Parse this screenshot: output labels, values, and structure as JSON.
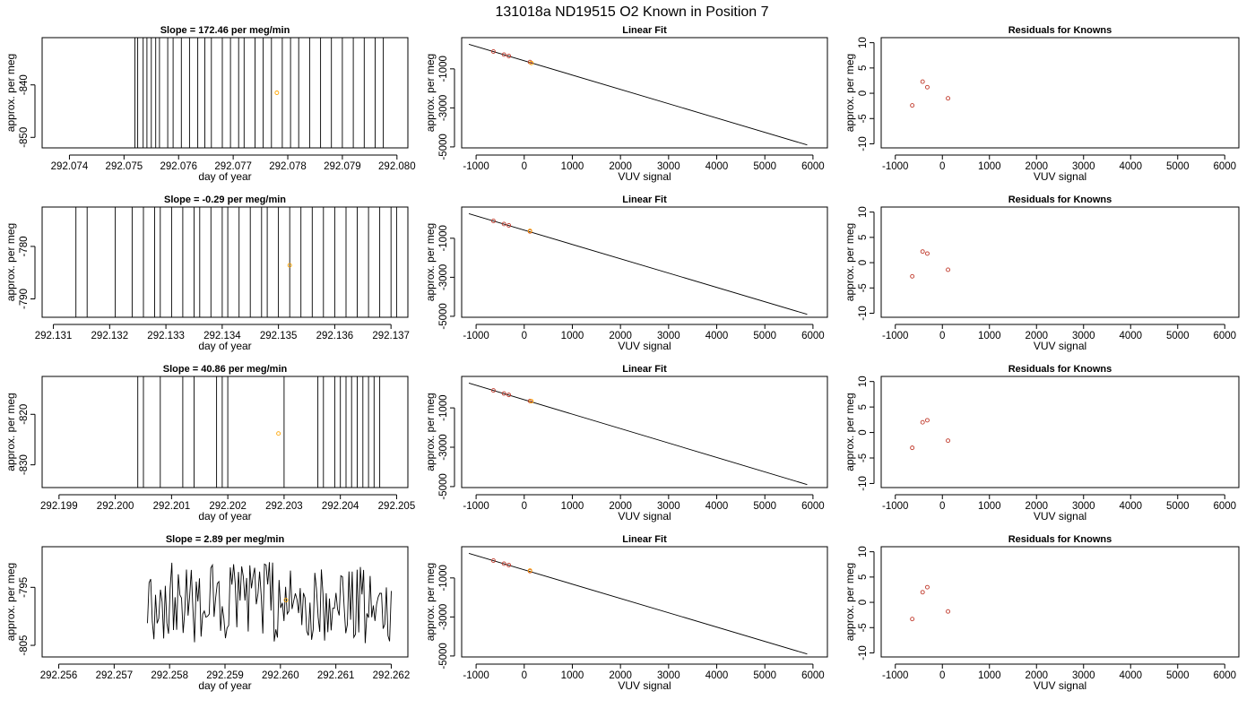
{
  "figure": {
    "title": "131018a     ND19515   O2 Known in Position  7"
  },
  "colors": {
    "trace": "#000000",
    "known_point": "#ffa500",
    "residual_point": "#c0392b",
    "fit_point": "#c0392b",
    "fit_line": "#000000",
    "frame": "#000000"
  },
  "chart_data": [
    {
      "type": "line",
      "title": "Slope =  172.46  per meg/min",
      "xlabel": "day of year",
      "ylabel": "approx. per meg",
      "xlim": [
        292.0735,
        292.0802
      ],
      "ylim": [
        -852,
        -831
      ],
      "xticks": [
        292.074,
        292.075,
        292.076,
        292.077,
        292.078,
        292.079,
        292.08
      ],
      "xtick_labels": [
        "292.074",
        "292.075",
        "292.076",
        "292.077",
        "292.078",
        "292.079",
        "292.080"
      ],
      "yticks": [
        -850,
        -840
      ],
      "ytick_labels": [
        "-850",
        "-840"
      ],
      "trace_style": "spikes",
      "trace_x": [
        292.0752,
        292.07525,
        292.07535,
        292.07542,
        292.0755,
        292.07558,
        292.07565,
        292.0758,
        292.0759,
        292.07605,
        292.0762,
        292.07635,
        292.07648,
        292.0766,
        292.0768,
        292.07695,
        292.0771,
        292.0772,
        292.0774,
        292.07755,
        292.0777,
        292.0779,
        292.07805,
        292.0782,
        292.0784,
        292.0786,
        292.0788,
        292.079,
        292.0792,
        292.0794,
        292.0796,
        292.07975
      ],
      "known_points": [
        {
          "x": 292.0778,
          "y": -841.5
        }
      ]
    },
    {
      "type": "scatter",
      "title": "Linear Fit",
      "xlabel": "VUV signal",
      "ylabel": "approx. per meg",
      "xlim": [
        -1300,
        6300
      ],
      "ylim": [
        -5050,
        600
      ],
      "xticks": [
        -1000,
        0,
        1000,
        2000,
        3000,
        4000,
        5000,
        6000
      ],
      "xtick_labels": [
        "-1000",
        "0",
        "1000",
        "2000",
        "3000",
        "4000",
        "5000",
        "6000"
      ],
      "yticks": [
        -5000,
        -3000,
        -1000
      ],
      "ytick_labels": [
        "-5000",
        "-3000",
        "-1000"
      ],
      "fit_line": {
        "x": [
          -1150,
          5880
        ],
        "y": [
          260,
          -4900
        ]
      },
      "points": [
        {
          "x": -640,
          "y": -110
        },
        {
          "x": -420,
          "y": -270
        },
        {
          "x": -320,
          "y": -340
        },
        {
          "x": 120,
          "y": -650
        }
      ],
      "known_points": [
        {
          "x": 150,
          "y": -700
        }
      ]
    },
    {
      "type": "scatter",
      "title": "Residuals for Knowns",
      "xlabel": "VUV signal",
      "ylabel": "approx. per meg",
      "xlim": [
        -1300,
        6300
      ],
      "ylim": [
        -10.8,
        11
      ],
      "xticks": [
        -1000,
        0,
        1000,
        2000,
        3000,
        4000,
        5000,
        6000
      ],
      "xtick_labels": [
        "-1000",
        "0",
        "1000",
        "2000",
        "3000",
        "4000",
        "5000",
        "6000"
      ],
      "yticks": [
        -10,
        -5,
        0,
        5,
        10
      ],
      "ytick_labels": [
        "-10",
        "-5",
        "0",
        "5",
        "10"
      ],
      "points": [
        {
          "x": -640,
          "y": -2.4
        },
        {
          "x": -420,
          "y": 2.3
        },
        {
          "x": -320,
          "y": 1.2
        },
        {
          "x": 120,
          "y": -1.0
        }
      ]
    },
    {
      "type": "line",
      "title": "Slope =  -0.29  per meg/min",
      "xlabel": "day of year",
      "ylabel": "approx. per meg",
      "xlim": [
        292.1308,
        292.1373
      ],
      "ylim": [
        -793.5,
        -772.5
      ],
      "xticks": [
        292.131,
        292.132,
        292.133,
        292.134,
        292.135,
        292.136,
        292.137
      ],
      "xtick_labels": [
        "292.131",
        "292.132",
        "292.133",
        "292.134",
        "292.135",
        "292.136",
        "292.137"
      ],
      "yticks": [
        -790,
        -780
      ],
      "ytick_labels": [
        "-790",
        "-780"
      ],
      "trace_style": "spikes",
      "trace_x": [
        292.1314,
        292.1316,
        292.1321,
        292.1324,
        292.1326,
        292.1328,
        292.1329,
        292.1331,
        292.1333,
        292.1335,
        292.1336,
        292.1338,
        292.134,
        292.1341,
        292.1343,
        292.1345,
        292.1347,
        292.1348,
        292.135,
        292.1352,
        292.1354,
        292.1356,
        292.1358,
        292.136,
        292.1362,
        292.1364,
        292.1366,
        292.1368,
        292.137,
        292.1371
      ],
      "known_points": [
        {
          "x": 292.1352,
          "y": -783.6
        }
      ]
    },
    {
      "type": "scatter",
      "title": "Linear Fit",
      "xlabel": "VUV signal",
      "ylabel": "approx. per meg",
      "xlim": [
        -1300,
        6300
      ],
      "ylim": [
        -5050,
        600
      ],
      "xticks": [
        -1000,
        0,
        1000,
        2000,
        3000,
        4000,
        5000,
        6000
      ],
      "xtick_labels": [
        "-1000",
        "0",
        "1000",
        "2000",
        "3000",
        "4000",
        "5000",
        "6000"
      ],
      "yticks": [
        -5000,
        -3000,
        -1000
      ],
      "ytick_labels": [
        "-5000",
        "-3000",
        "-1000"
      ],
      "fit_line": {
        "x": [
          -1150,
          5880
        ],
        "y": [
          260,
          -4900
        ]
      },
      "points": [
        {
          "x": -640,
          "y": -110
        },
        {
          "x": -420,
          "y": -270
        },
        {
          "x": -320,
          "y": -340
        },
        {
          "x": 120,
          "y": -650
        }
      ],
      "known_points": [
        {
          "x": 120,
          "y": -620
        }
      ]
    },
    {
      "type": "scatter",
      "title": "Residuals for Knowns",
      "xlabel": "VUV signal",
      "ylabel": "approx. per meg",
      "xlim": [
        -1300,
        6300
      ],
      "ylim": [
        -10.8,
        11
      ],
      "xticks": [
        -1000,
        0,
        1000,
        2000,
        3000,
        4000,
        5000,
        6000
      ],
      "xtick_labels": [
        "-1000",
        "0",
        "1000",
        "2000",
        "3000",
        "4000",
        "5000",
        "6000"
      ],
      "yticks": [
        -10,
        -5,
        0,
        5,
        10
      ],
      "ytick_labels": [
        "-10",
        "-5",
        "0",
        "5",
        "10"
      ],
      "points": [
        {
          "x": -640,
          "y": -2.7
        },
        {
          "x": -420,
          "y": 2.2
        },
        {
          "x": -320,
          "y": 1.8
        },
        {
          "x": 120,
          "y": -1.4
        }
      ]
    },
    {
      "type": "line",
      "title": "Slope =  40.86  per meg/min",
      "xlabel": "day of year",
      "ylabel": "approx. per meg",
      "xlim": [
        292.1987,
        292.2052
      ],
      "ylim": [
        -834.5,
        -812.5
      ],
      "xticks": [
        292.199,
        292.2,
        292.201,
        292.202,
        292.203,
        292.204,
        292.205
      ],
      "xtick_labels": [
        "292.199",
        "292.200",
        "292.201",
        "292.202",
        "292.203",
        "292.204",
        "292.205"
      ],
      "yticks": [
        -830,
        -820
      ],
      "ytick_labels": [
        "-830",
        "-820"
      ],
      "trace_style": "spikes",
      "trace_x": [
        292.2004,
        292.2005,
        292.2008,
        292.2012,
        292.2014,
        292.2018,
        292.2019,
        292.202,
        292.203,
        292.2036,
        292.2037,
        292.2039,
        292.204,
        292.2041,
        292.2042,
        292.2043,
        292.2044,
        292.2045,
        292.2046,
        292.2047
      ],
      "known_points": [
        {
          "x": 292.2029,
          "y": -823.8
        }
      ]
    },
    {
      "type": "scatter",
      "title": "Linear Fit",
      "xlabel": "VUV signal",
      "ylabel": "approx. per meg",
      "xlim": [
        -1300,
        6300
      ],
      "ylim": [
        -5050,
        600
      ],
      "xticks": [
        -1000,
        0,
        1000,
        2000,
        3000,
        4000,
        5000,
        6000
      ],
      "xtick_labels": [
        "-1000",
        "0",
        "1000",
        "2000",
        "3000",
        "4000",
        "5000",
        "6000"
      ],
      "yticks": [
        -5000,
        -3000,
        -1000
      ],
      "ytick_labels": [
        "-5000",
        "-3000",
        "-1000"
      ],
      "fit_line": {
        "x": [
          -1150,
          5880
        ],
        "y": [
          260,
          -4900
        ]
      },
      "points": [
        {
          "x": -640,
          "y": -110
        },
        {
          "x": -420,
          "y": -270
        },
        {
          "x": -320,
          "y": -340
        },
        {
          "x": 120,
          "y": -650
        }
      ],
      "known_points": [
        {
          "x": 150,
          "y": -660
        }
      ]
    },
    {
      "type": "scatter",
      "title": "Residuals for Knowns",
      "xlabel": "VUV signal",
      "ylabel": "approx. per meg",
      "xlim": [
        -1300,
        6300
      ],
      "ylim": [
        -10.8,
        11
      ],
      "xticks": [
        -1000,
        0,
        1000,
        2000,
        3000,
        4000,
        5000,
        6000
      ],
      "xtick_labels": [
        "-1000",
        "0",
        "1000",
        "2000",
        "3000",
        "4000",
        "5000",
        "6000"
      ],
      "yticks": [
        -10,
        -5,
        0,
        5,
        10
      ],
      "ytick_labels": [
        "-10",
        "-5",
        "0",
        "5",
        "10"
      ],
      "points": [
        {
          "x": -640,
          "y": -3.0
        },
        {
          "x": -420,
          "y": 2.0
        },
        {
          "x": -320,
          "y": 2.4
        },
        {
          "x": 120,
          "y": -1.6
        }
      ]
    },
    {
      "type": "line",
      "title": "Slope =  2.89  per meg/min",
      "xlabel": "day of year",
      "ylabel": "approx. per meg",
      "xlim": [
        292.2557,
        292.2623
      ],
      "ylim": [
        -807,
        -788
      ],
      "xticks": [
        292.256,
        292.257,
        292.258,
        292.259,
        292.26,
        292.261,
        292.262
      ],
      "xtick_labels": [
        "292.256",
        "292.257",
        "292.258",
        "292.259",
        "292.260",
        "292.261",
        "292.262"
      ],
      "yticks": [
        -805,
        -795
      ],
      "ytick_labels": [
        "-805",
        "-795"
      ],
      "trace_style": "wave",
      "trace_x0": 292.2576,
      "trace_x1": 292.262,
      "known_points": [
        {
          "x": 292.2601,
          "y": -797.2
        }
      ]
    },
    {
      "type": "scatter",
      "title": "Linear Fit",
      "xlabel": "VUV signal",
      "ylabel": "approx. per meg",
      "xlim": [
        -1300,
        6300
      ],
      "ylim": [
        -5050,
        600
      ],
      "xticks": [
        -1000,
        0,
        1000,
        2000,
        3000,
        4000,
        5000,
        6000
      ],
      "xtick_labels": [
        "-1000",
        "0",
        "1000",
        "2000",
        "3000",
        "4000",
        "5000",
        "6000"
      ],
      "yticks": [
        -5000,
        -3000,
        -1000
      ],
      "ytick_labels": [
        "-5000",
        "-3000",
        "-1000"
      ],
      "fit_line": {
        "x": [
          -1150,
          5880
        ],
        "y": [
          260,
          -4900
        ]
      },
      "points": [
        {
          "x": -640,
          "y": -110
        },
        {
          "x": -420,
          "y": -270
        },
        {
          "x": -320,
          "y": -340
        },
        {
          "x": 120,
          "y": -650
        }
      ],
      "known_points": [
        {
          "x": 120,
          "y": -620
        }
      ]
    },
    {
      "type": "scatter",
      "title": "Residuals for Knowns",
      "xlabel": "VUV signal",
      "ylabel": "approx. per meg",
      "xlim": [
        -1300,
        6300
      ],
      "ylim": [
        -10.8,
        11
      ],
      "xticks": [
        -1000,
        0,
        1000,
        2000,
        3000,
        4000,
        5000,
        6000
      ],
      "xtick_labels": [
        "-1000",
        "0",
        "1000",
        "2000",
        "3000",
        "4000",
        "5000",
        "6000"
      ],
      "yticks": [
        -10,
        -5,
        0,
        5,
        10
      ],
      "ytick_labels": [
        "-10",
        "-5",
        "0",
        "5",
        "10"
      ],
      "points": [
        {
          "x": -640,
          "y": -3.3
        },
        {
          "x": -420,
          "y": 2.0
        },
        {
          "x": -320,
          "y": 3.0
        },
        {
          "x": 120,
          "y": -1.8
        }
      ]
    }
  ]
}
